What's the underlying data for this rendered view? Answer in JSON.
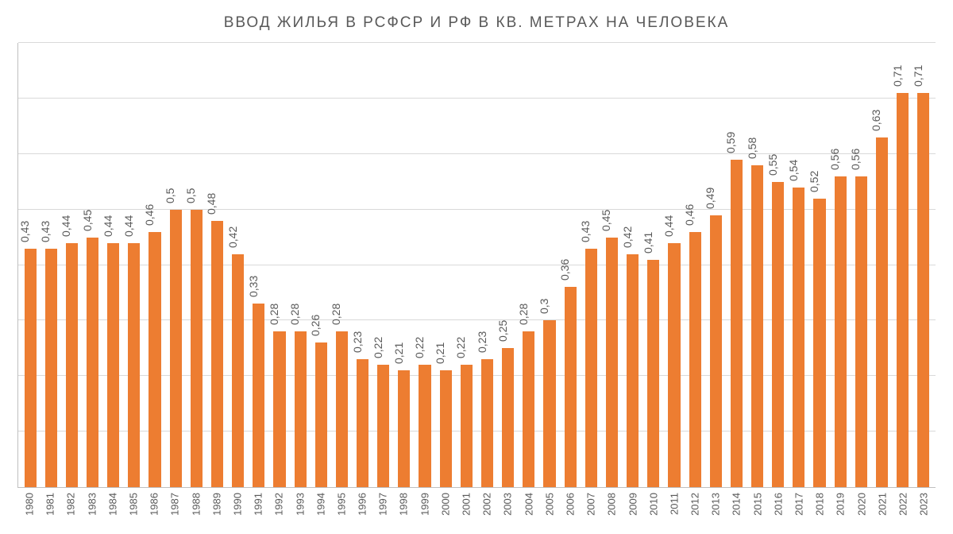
{
  "chart": {
    "type": "bar",
    "title": "ВВОД ЖИЛЬЯ В РСФСР И РФ В КВ. МЕТРАХ НА ЧЕЛОВЕКА",
    "title_color": "#595959",
    "title_fontsize": 19,
    "background_color": "#ffffff",
    "axis_color": "#bfbfbf",
    "grid_color": "#d9d9d9",
    "bar_color": "#ed7d31",
    "value_label_color": "#595959",
    "value_label_fontsize": 14,
    "x_label_color": "#595959",
    "x_label_fontsize": 13,
    "ylim_min": 0,
    "ylim_max": 0.8,
    "gridline_values": [
      0.1,
      0.2,
      0.3,
      0.4,
      0.5,
      0.6,
      0.7,
      0.8
    ],
    "bar_width_ratio": 0.58,
    "decimal_separator": ",",
    "years": [
      "1980",
      "1981",
      "1982",
      "1983",
      "1984",
      "1985",
      "1986",
      "1987",
      "1988",
      "1989",
      "1990",
      "1991",
      "1992",
      "1993",
      "1994",
      "1995",
      "1996",
      "1997",
      "1998",
      "1999",
      "2000",
      "2001",
      "2002",
      "2003",
      "2004",
      "2005",
      "2006",
      "2007",
      "2008",
      "2009",
      "2010",
      "2011",
      "2012",
      "2013",
      "2014",
      "2015",
      "2016",
      "2017",
      "2018",
      "2019",
      "2020",
      "2021",
      "2022",
      "2023"
    ],
    "values": [
      0.43,
      0.43,
      0.44,
      0.45,
      0.44,
      0.44,
      0.46,
      0.5,
      0.5,
      0.48,
      0.42,
      0.33,
      0.28,
      0.28,
      0.26,
      0.28,
      0.23,
      0.22,
      0.21,
      0.22,
      0.21,
      0.22,
      0.23,
      0.25,
      0.28,
      0.3,
      0.36,
      0.43,
      0.45,
      0.42,
      0.41,
      0.44,
      0.46,
      0.49,
      0.59,
      0.58,
      0.55,
      0.54,
      0.52,
      0.56,
      0.56,
      0.63,
      0.71,
      0.71
    ]
  }
}
